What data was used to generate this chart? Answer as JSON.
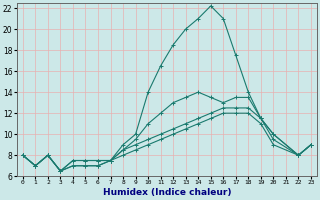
{
  "xlabel": "Humidex (Indice chaleur)",
  "xlim": [
    -0.5,
    23.5
  ],
  "ylim": [
    6,
    22.5
  ],
  "yticks": [
    6,
    8,
    10,
    12,
    14,
    16,
    18,
    20,
    22
  ],
  "xticks": [
    0,
    1,
    2,
    3,
    4,
    5,
    6,
    7,
    8,
    9,
    10,
    11,
    12,
    13,
    14,
    15,
    16,
    17,
    18,
    19,
    20,
    21,
    22,
    23
  ],
  "background_color": "#cce8e8",
  "grid_color": "#e8b0b0",
  "line_color": "#1a7a6e",
  "line_width": 0.8,
  "marker": "+",
  "marker_size": 3,
  "lines": [
    {
      "x": [
        0,
        1,
        2,
        3,
        4,
        5,
        6,
        7,
        8,
        9,
        10,
        11,
        12,
        13,
        14,
        15,
        16,
        17,
        18,
        19,
        20,
        22,
        23
      ],
      "y": [
        8.0,
        7.0,
        8.0,
        6.5,
        7.5,
        7.5,
        7.5,
        7.5,
        9.0,
        10.0,
        14.0,
        16.5,
        18.5,
        20.0,
        21.0,
        22.2,
        21.0,
        17.5,
        14.0,
        11.5,
        10.0,
        8.0,
        9.0
      ]
    },
    {
      "x": [
        0,
        1,
        2,
        3,
        4,
        5,
        6,
        7,
        8,
        9,
        10,
        11,
        12,
        13,
        14,
        15,
        16,
        17,
        18,
        19,
        20,
        22,
        23
      ],
      "y": [
        8.0,
        7.0,
        8.0,
        6.5,
        7.5,
        7.5,
        7.5,
        7.5,
        8.5,
        9.5,
        11.0,
        12.0,
        13.0,
        13.5,
        14.0,
        13.5,
        13.0,
        13.5,
        13.5,
        11.5,
        10.0,
        8.0,
        9.0
      ]
    },
    {
      "x": [
        0,
        1,
        2,
        3,
        4,
        5,
        6,
        7,
        8,
        9,
        10,
        11,
        12,
        13,
        14,
        15,
        16,
        17,
        18,
        19,
        20,
        22,
        23
      ],
      "y": [
        8.0,
        7.0,
        8.0,
        6.5,
        7.0,
        7.0,
        7.0,
        7.5,
        8.5,
        9.0,
        9.5,
        10.0,
        10.5,
        11.0,
        11.5,
        12.0,
        12.5,
        12.5,
        12.5,
        11.5,
        9.5,
        8.0,
        9.0
      ]
    },
    {
      "x": [
        0,
        1,
        2,
        3,
        4,
        5,
        6,
        7,
        8,
        9,
        10,
        11,
        12,
        13,
        14,
        15,
        16,
        17,
        18,
        19,
        20,
        22,
        23
      ],
      "y": [
        8.0,
        7.0,
        8.0,
        6.5,
        7.0,
        7.0,
        7.0,
        7.5,
        8.0,
        8.5,
        9.0,
        9.5,
        10.0,
        10.5,
        11.0,
        11.5,
        12.0,
        12.0,
        12.0,
        11.0,
        9.0,
        8.0,
        9.0
      ]
    }
  ]
}
